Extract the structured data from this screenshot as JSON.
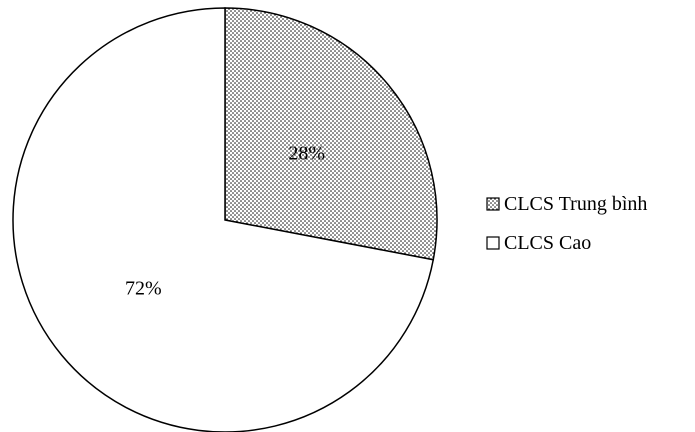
{
  "chart_data": {
    "type": "pie",
    "title": "",
    "categories": [
      "CLCS Trung bình",
      "CLCS Cao"
    ],
    "values": [
      28,
      72
    ],
    "data_labels": [
      "28%",
      "72%"
    ],
    "start_angle_deg": 0,
    "direction": "clockwise",
    "fills": [
      "dotted-pattern",
      "white"
    ],
    "legend": {
      "position": "right",
      "entries": [
        "CLCS Trung bình",
        "CLCS Cao"
      ]
    },
    "colors": {
      "stroke": "#000000",
      "dot": "#000000",
      "background": "#ffffff"
    }
  }
}
